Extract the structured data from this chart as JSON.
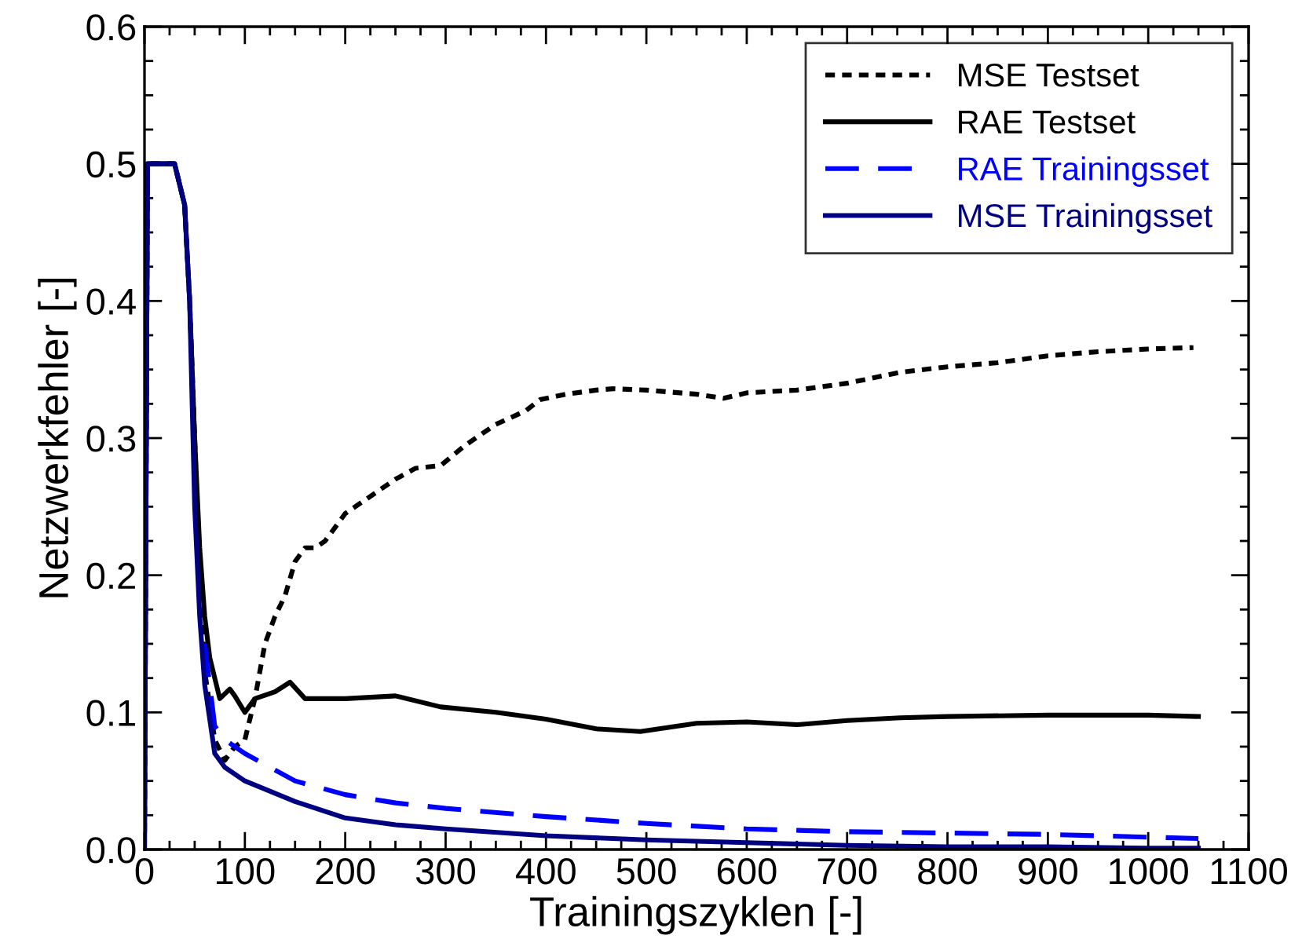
{
  "chart_data": {
    "type": "line",
    "xlabel": "Trainingszyklen [-]",
    "ylabel": "Netzwerkfehler [-]",
    "xlim": [
      0,
      1100
    ],
    "xticks": [
      0,
      100,
      200,
      300,
      400,
      500,
      600,
      700,
      800,
      900,
      1000,
      1100
    ],
    "ylim": [
      0,
      0.6
    ],
    "yticks": [
      {
        "value": 0,
        "label": "0.0"
      },
      0.1,
      0.2,
      0.3,
      0.4,
      0.5,
      0.6
    ],
    "grid": false,
    "legend": "top right",
    "series": [
      {
        "name": "MSE Testset",
        "color": "#000000",
        "line_style": "dotted",
        "x": [
          0,
          3,
          30,
          40,
          45,
          50,
          55,
          60,
          70,
          80,
          90,
          100,
          110,
          120,
          130,
          140,
          150,
          160,
          170,
          180,
          200,
          220,
          250,
          270,
          295,
          320,
          350,
          380,
          394,
          420,
          450,
          467,
          500,
          550,
          577,
          600,
          650,
          700,
          753,
          800,
          850,
          900,
          950,
          1000,
          1045
        ],
        "values": [
          0,
          0.5,
          0.5,
          0.47,
          0.4,
          0.3,
          0.2,
          0.13,
          0.08,
          0.065,
          0.075,
          0.08,
          0.11,
          0.15,
          0.17,
          0.185,
          0.21,
          0.22,
          0.22,
          0.225,
          0.245,
          0.255,
          0.27,
          0.278,
          0.28,
          0.295,
          0.31,
          0.32,
          0.328,
          0.332,
          0.335,
          0.336,
          0.335,
          0.332,
          0.329,
          0.333,
          0.335,
          0.34,
          0.348,
          0.352,
          0.355,
          0.36,
          0.363,
          0.365,
          0.366
        ]
      },
      {
        "name": "RAE Testset",
        "color": "#000000",
        "line_style": "solid",
        "x": [
          0,
          3,
          30,
          40,
          45,
          50,
          55,
          60,
          65,
          75,
          85,
          90,
          100,
          110,
          130,
          145,
          160,
          200,
          250,
          295,
          350,
          400,
          450,
          494,
          550,
          600,
          650,
          700,
          753,
          800,
          900,
          1000,
          1050
        ],
        "values": [
          0,
          0.5,
          0.5,
          0.47,
          0.4,
          0.3,
          0.22,
          0.17,
          0.14,
          0.11,
          0.117,
          0.112,
          0.1,
          0.11,
          0.115,
          0.122,
          0.11,
          0.11,
          0.112,
          0.104,
          0.1,
          0.095,
          0.088,
          0.086,
          0.092,
          0.093,
          0.091,
          0.094,
          0.096,
          0.097,
          0.098,
          0.098,
          0.097
        ]
      },
      {
        "name": "RAE Trainingsset",
        "color": "#0000ff",
        "line_style": "dashed",
        "x": [
          60,
          70,
          80,
          100,
          150,
          200,
          250,
          300,
          400,
          500,
          600,
          700,
          800,
          900,
          1000,
          1050
        ],
        "values": [
          0.15,
          0.09,
          0.08,
          0.07,
          0.05,
          0.04,
          0.034,
          0.03,
          0.024,
          0.019,
          0.015,
          0.013,
          0.012,
          0.011,
          0.009,
          0.008
        ]
      },
      {
        "name": "MSE Trainingsset",
        "color": "#000080",
        "line_style": "solid",
        "x": [
          0,
          3,
          30,
          40,
          45,
          50,
          55,
          60,
          70,
          80,
          100,
          150,
          200,
          250,
          300,
          400,
          500,
          600,
          700,
          800,
          900,
          1000,
          1050
        ],
        "values": [
          0,
          0.5,
          0.5,
          0.47,
          0.4,
          0.25,
          0.17,
          0.12,
          0.07,
          0.06,
          0.05,
          0.035,
          0.023,
          0.018,
          0.015,
          0.01,
          0.007,
          0.005,
          0.003,
          0.002,
          0.002,
          0.001,
          0.001
        ]
      }
    ]
  }
}
